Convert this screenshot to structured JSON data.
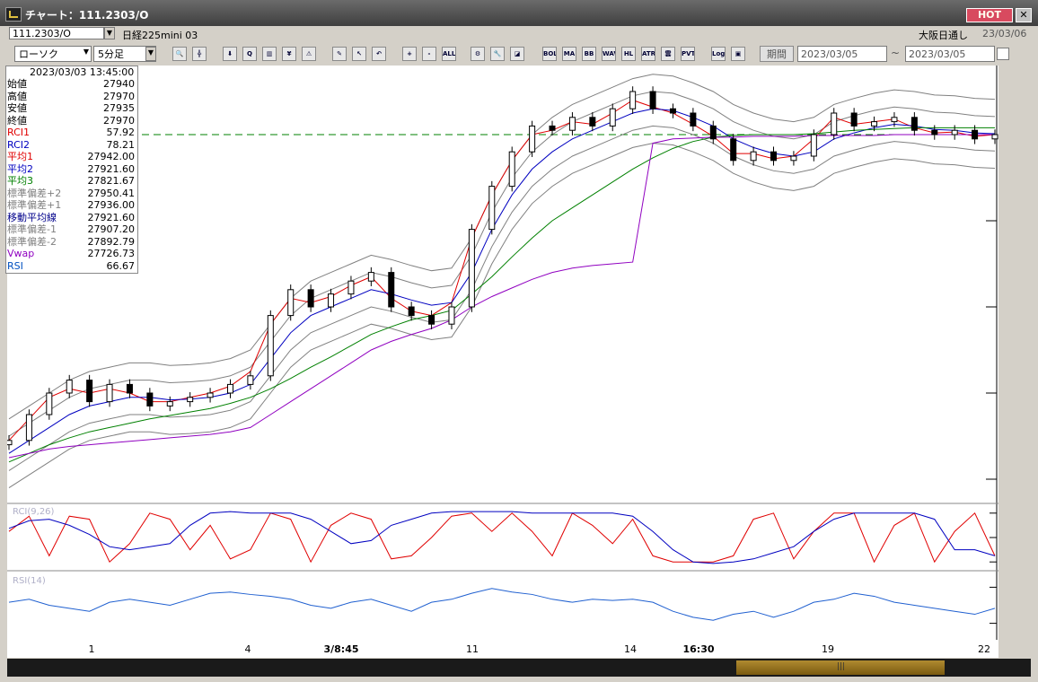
{
  "window": {
    "title": "チャート：111.2303/O",
    "hot_label": "HOT",
    "close_label": "✕"
  },
  "header": {
    "symbol_code": "111.2303/O",
    "symbol_name": "日経225mini 03",
    "market": "大阪日通し",
    "market_date": "23/03/06"
  },
  "toolbar": {
    "chart_type": "ローソク",
    "interval": "5分足",
    "period_label": "期間",
    "date_from": "2023/03/05",
    "date_to": "2023/03/05",
    "tilde": "~",
    "icons": [
      {
        "name": "zoom-icon",
        "label": "🔍"
      },
      {
        "name": "crosshair-icon",
        "label": "╬"
      },
      {
        "name": "down-arrow-icon",
        "label": "⬇"
      },
      {
        "name": "find-icon",
        "label": "Q"
      },
      {
        "name": "bar-chart-icon",
        "label": "▥"
      },
      {
        "name": "yen-icon",
        "label": "¥"
      },
      {
        "name": "alert-icon",
        "label": "⚠"
      },
      {
        "name": "pen-icon",
        "label": "✎"
      },
      {
        "name": "cursor-icon",
        "label": "↖"
      },
      {
        "name": "undo-icon",
        "label": "↶"
      },
      {
        "name": "zoom-in-icon",
        "label": "+"
      },
      {
        "name": "zoom-out-icon",
        "label": "-"
      },
      {
        "name": "all-icon",
        "label": "ALL"
      },
      {
        "name": "settings-icon",
        "label": "⚙"
      },
      {
        "name": "wrench-icon",
        "label": "🔧"
      },
      {
        "name": "palette-icon",
        "label": "◪"
      },
      {
        "name": "indicator-bol-icon",
        "label": "BOL"
      },
      {
        "name": "indicator-ma-icon",
        "label": "MA"
      },
      {
        "name": "indicator-bb-icon",
        "label": "BB"
      },
      {
        "name": "indicator-wave-icon",
        "label": "WAVE"
      },
      {
        "name": "indicator-hl-icon",
        "label": "HL"
      },
      {
        "name": "indicator-atr-icon",
        "label": "ATR"
      },
      {
        "name": "indicator-ichimoku-icon",
        "label": "雲"
      },
      {
        "name": "indicator-pvt-icon",
        "label": "PVT"
      },
      {
        "name": "log-icon",
        "label": "Log"
      },
      {
        "name": "export-icon",
        "label": "▣"
      }
    ]
  },
  "info_panel": {
    "datetime": "2023/03/03  13:45:00",
    "rows": [
      {
        "label": "始値",
        "value": "27940",
        "color": "#000000"
      },
      {
        "label": "高値",
        "value": "27970",
        "color": "#000000"
      },
      {
        "label": "安値",
        "value": "27935",
        "color": "#000000"
      },
      {
        "label": "終値",
        "value": "27970",
        "color": "#000000"
      },
      {
        "label": "RCI1",
        "value": "57.92",
        "color": "#e00000"
      },
      {
        "label": "RCI2",
        "value": "78.21",
        "color": "#0000c0"
      },
      {
        "label": "平均1",
        "value": "27942.00",
        "color": "#e00000"
      },
      {
        "label": "平均2",
        "value": "27921.60",
        "color": "#0000c0"
      },
      {
        "label": "平均3",
        "value": "27821.67",
        "color": "#008000"
      },
      {
        "label": "標準偏差+2",
        "value": "27950.41",
        "color": "#808080"
      },
      {
        "label": "標準偏差+1",
        "value": "27936.00",
        "color": "#808080"
      },
      {
        "label": "移動平均線",
        "value": "27921.60",
        "color": "#00008b"
      },
      {
        "label": "標準偏差-1",
        "value": "27907.20",
        "color": "#808080"
      },
      {
        "label": "標準偏差-2",
        "value": "27892.79",
        "color": "#808080"
      },
      {
        "label": "Vwap",
        "value": "27726.73",
        "color": "#9000c0"
      },
      {
        "label": "RSI",
        "value": "66.67",
        "color": "#0050c0"
      }
    ]
  },
  "chart_data": [
    {
      "type": "candlestick",
      "ylim": [
        27475,
        27975
      ],
      "yticks": [
        "27900",
        "27800",
        "27700",
        "27600",
        "27500"
      ],
      "ytick_values": [
        27900,
        27800,
        27700,
        27600,
        27500
      ],
      "reference_line": 27900,
      "xticks": [
        "1",
        "4",
        "3/8:45",
        "11",
        "14",
        "16:30",
        "19",
        "22"
      ],
      "close_path": [
        27545,
        27575,
        27600,
        27615,
        27590,
        27610,
        27600,
        27585,
        27590,
        27595,
        27600,
        27610,
        27620,
        27690,
        27720,
        27700,
        27715,
        27730,
        27740,
        27700,
        27690,
        27680,
        27700,
        27790,
        27840,
        27880,
        27910,
        27905,
        27920,
        27910,
        27930,
        27950,
        27930,
        27925,
        27910,
        27895,
        27870,
        27880,
        27870,
        27875,
        27900,
        27925,
        27910,
        27915,
        27920,
        27905,
        27900,
        27905,
        27895,
        27900
      ],
      "series": [
        {
          "name": "平均1",
          "color": "#e00000",
          "values": [
            27545,
            27570,
            27595,
            27605,
            27600,
            27605,
            27600,
            27590,
            27590,
            27595,
            27600,
            27608,
            27625,
            27680,
            27710,
            27705,
            27712,
            27725,
            27735,
            27710,
            27695,
            27690,
            27705,
            27780,
            27830,
            27870,
            27900,
            27905,
            27915,
            27912,
            27925,
            27940,
            27932,
            27925,
            27912,
            27898,
            27878,
            27878,
            27872,
            27875,
            27895,
            27920,
            27912,
            27915,
            27918,
            27908,
            27902,
            27903,
            27898,
            27900
          ]
        },
        {
          "name": "平均2",
          "color": "#0000c0",
          "values": [
            27530,
            27545,
            27560,
            27575,
            27585,
            27590,
            27595,
            27595,
            27592,
            27593,
            27595,
            27600,
            27610,
            27640,
            27670,
            27690,
            27700,
            27710,
            27720,
            27715,
            27708,
            27702,
            27705,
            27740,
            27790,
            27830,
            27860,
            27880,
            27895,
            27905,
            27915,
            27925,
            27930,
            27928,
            27920,
            27910,
            27895,
            27885,
            27878,
            27875,
            27880,
            27895,
            27902,
            27908,
            27912,
            27910,
            27906,
            27905,
            27902,
            27901
          ]
        },
        {
          "name": "平均3",
          "color": "#008000",
          "values": [
            27520,
            27530,
            27540,
            27548,
            27555,
            27560,
            27565,
            27570,
            27574,
            27578,
            27582,
            27588,
            27595,
            27605,
            27617,
            27630,
            27642,
            27655,
            27668,
            27677,
            27685,
            27690,
            27696,
            27715,
            27735,
            27758,
            27780,
            27800,
            27815,
            27830,
            27845,
            27860,
            27873,
            27884,
            27892,
            27897,
            27899,
            27900,
            27900,
            27900,
            27901,
            27903,
            27905,
            27906,
            27907,
            27908,
            27908,
            27908,
            27908,
            27908
          ]
        },
        {
          "name": "Vwap",
          "color": "#9000c0",
          "values": [
            27525,
            27530,
            27535,
            27538,
            27540,
            27542,
            27544,
            27546,
            27548,
            27550,
            27552,
            27555,
            27560,
            27575,
            27590,
            27605,
            27620,
            27635,
            27650,
            27660,
            27668,
            27675,
            27685,
            27700,
            27712,
            27722,
            27732,
            27740,
            27745,
            27748,
            27750,
            27752,
            27890,
            27895,
            27896,
            27897,
            27897,
            27898,
            27898,
            27898,
            27899,
            27899,
            27899,
            27899,
            27900,
            27900,
            27900,
            27900,
            27900,
            27900
          ]
        }
      ]
    },
    {
      "type": "line",
      "title": "RCI(9,26)",
      "ylim": [
        -100,
        100
      ],
      "yticks": [
        "80.00",
        "0.00",
        "-80.00"
      ],
      "ytick_values": [
        80,
        0,
        -80
      ],
      "series": [
        {
          "name": "RCI1",
          "color": "#e00000",
          "values": [
            20,
            70,
            -60,
            70,
            60,
            -80,
            -20,
            80,
            60,
            -40,
            40,
            -70,
            -40,
            80,
            60,
            -80,
            40,
            80,
            60,
            -70,
            -60,
            0,
            70,
            80,
            20,
            80,
            20,
            -60,
            80,
            40,
            -20,
            60,
            -60,
            -80,
            -80,
            -80,
            -60,
            60,
            80,
            -70,
            20,
            80,
            80,
            -80,
            40,
            80,
            -80,
            20,
            80,
            -60
          ]
        },
        {
          "name": "RCI2",
          "color": "#0000c0",
          "values": [
            30,
            55,
            60,
            40,
            10,
            -30,
            -40,
            -30,
            -20,
            40,
            80,
            85,
            80,
            80,
            80,
            60,
            20,
            -20,
            -10,
            40,
            60,
            80,
            85,
            85,
            85,
            85,
            80,
            80,
            80,
            80,
            80,
            70,
            20,
            -40,
            -80,
            -85,
            -80,
            -70,
            -50,
            -30,
            20,
            60,
            80,
            80,
            80,
            80,
            60,
            -40,
            -40,
            -60
          ]
        }
      ]
    },
    {
      "type": "line",
      "title": "RSI(14)",
      "ylim": [
        0,
        100
      ],
      "yticks": [
        "80.00",
        "20.00"
      ],
      "ytick_values": [
        80,
        20
      ],
      "series": [
        {
          "name": "RSI",
          "color": "#2060d0",
          "values": [
            55,
            60,
            50,
            45,
            40,
            55,
            60,
            55,
            50,
            60,
            70,
            72,
            68,
            65,
            60,
            50,
            45,
            55,
            60,
            50,
            40,
            55,
            60,
            70,
            78,
            72,
            68,
            60,
            55,
            60,
            58,
            60,
            55,
            40,
            30,
            25,
            35,
            40,
            30,
            40,
            55,
            60,
            70,
            65,
            55,
            50,
            45,
            40,
            35,
            45
          ]
        }
      ]
    }
  ]
}
